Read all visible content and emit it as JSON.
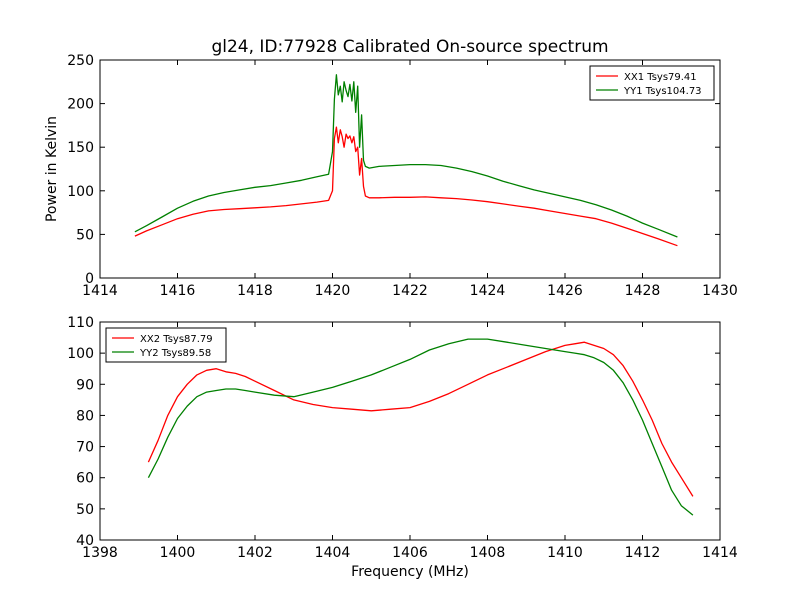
{
  "chart_data": [
    {
      "type": "line",
      "title": "gl24, ID:77928 Calibrated On-source spectrum",
      "xlabel": "",
      "ylabel": "Power in Kelvin",
      "xlim": [
        1414,
        1430
      ],
      "ylim": [
        0,
        250
      ],
      "xticks": [
        1414,
        1416,
        1418,
        1420,
        1422,
        1424,
        1426,
        1428,
        1430
      ],
      "yticks": [
        0,
        50,
        100,
        150,
        200,
        250
      ],
      "legend": "top-right",
      "grid": false,
      "series": [
        {
          "name": "XX1 Tsys79.41",
          "color": "#ff0000",
          "x": [
            1414.9,
            1415.2,
            1415.6,
            1416.0,
            1416.4,
            1416.8,
            1417.2,
            1417.6,
            1418.0,
            1418.4,
            1418.8,
            1419.2,
            1419.6,
            1419.9,
            1420.0,
            1420.05,
            1420.1,
            1420.15,
            1420.2,
            1420.25,
            1420.3,
            1420.35,
            1420.4,
            1420.45,
            1420.5,
            1420.55,
            1420.6,
            1420.65,
            1420.7,
            1420.75,
            1420.8,
            1420.85,
            1420.95,
            1421.2,
            1421.6,
            1422.0,
            1422.4,
            1422.8,
            1423.2,
            1423.6,
            1424.0,
            1424.4,
            1424.8,
            1425.2,
            1425.6,
            1426.0,
            1426.4,
            1426.8,
            1427.2,
            1427.6,
            1428.0,
            1428.4,
            1428.9
          ],
          "y": [
            48,
            54,
            61,
            68,
            73,
            77,
            78.5,
            79.5,
            80.5,
            81.5,
            83,
            85,
            87,
            89,
            100,
            160,
            173,
            155,
            170,
            162,
            150,
            165,
            160,
            163,
            155,
            162,
            145,
            150,
            118,
            137,
            105,
            94,
            92,
            92,
            92.5,
            92.5,
            93,
            92,
            91,
            89.5,
            87.5,
            85,
            82.5,
            80,
            77,
            74,
            71,
            68,
            63,
            57,
            51,
            45,
            37
          ]
        },
        {
          "name": "YY1 Tsys104.73",
          "color": "#008000",
          "x": [
            1414.9,
            1415.2,
            1415.6,
            1416.0,
            1416.4,
            1416.8,
            1417.2,
            1417.6,
            1418.0,
            1418.4,
            1418.8,
            1419.2,
            1419.6,
            1419.9,
            1420.0,
            1420.05,
            1420.1,
            1420.15,
            1420.2,
            1420.25,
            1420.3,
            1420.35,
            1420.4,
            1420.45,
            1420.5,
            1420.55,
            1420.6,
            1420.65,
            1420.7,
            1420.75,
            1420.8,
            1420.85,
            1420.95,
            1421.2,
            1421.6,
            1422.0,
            1422.4,
            1422.8,
            1423.2,
            1423.6,
            1424.0,
            1424.4,
            1424.8,
            1425.2,
            1425.6,
            1426.0,
            1426.4,
            1426.8,
            1427.2,
            1427.6,
            1428.0,
            1428.4,
            1428.9
          ],
          "y": [
            53,
            60,
            70,
            80,
            88,
            94,
            98,
            101,
            104,
            106,
            109,
            112,
            116,
            119,
            145,
            205,
            233,
            210,
            220,
            202,
            225,
            215,
            208,
            222,
            203,
            225,
            190,
            220,
            150,
            187,
            135,
            128,
            126,
            128,
            129,
            130,
            130,
            129,
            126,
            122,
            117,
            111,
            106,
            101,
            97,
            93,
            89,
            84,
            78,
            71,
            63,
            56,
            47
          ]
        }
      ]
    },
    {
      "type": "line",
      "title": "",
      "xlabel": "Frequency (MHz)",
      "ylabel": "",
      "xlim": [
        1398,
        1414
      ],
      "ylim": [
        40,
        110
      ],
      "xticks": [
        1398,
        1400,
        1402,
        1404,
        1406,
        1408,
        1410,
        1412,
        1414
      ],
      "yticks": [
        40,
        50,
        60,
        70,
        80,
        90,
        100,
        110
      ],
      "legend": "top-left",
      "grid": false,
      "series": [
        {
          "name": "XX2 Tsys87.79",
          "color": "#ff0000",
          "x": [
            1399.25,
            1399.5,
            1399.75,
            1400.0,
            1400.25,
            1400.5,
            1400.75,
            1401.0,
            1401.25,
            1401.5,
            1401.75,
            1402.0,
            1402.5,
            1403.0,
            1403.5,
            1404.0,
            1404.5,
            1405.0,
            1405.5,
            1406.0,
            1406.5,
            1407.0,
            1407.5,
            1408.0,
            1408.5,
            1409.0,
            1409.5,
            1410.0,
            1410.25,
            1410.5,
            1410.75,
            1411.0,
            1411.25,
            1411.5,
            1411.75,
            1412.0,
            1412.25,
            1412.5,
            1412.75,
            1413.0,
            1413.3
          ],
          "y": [
            65,
            72,
            80,
            86,
            90,
            93,
            94.5,
            95,
            94,
            93.5,
            92.5,
            91,
            88,
            85,
            83.5,
            82.5,
            82,
            81.5,
            82,
            82.5,
            84.5,
            87,
            90,
            93,
            95.5,
            98,
            100.5,
            102.5,
            103,
            103.5,
            102.5,
            101.5,
            99.5,
            96,
            91,
            85,
            78.5,
            71,
            65,
            60,
            54
          ]
        },
        {
          "name": "YY2 Tsys89.58",
          "color": "#008000",
          "x": [
            1399.25,
            1399.5,
            1399.75,
            1400.0,
            1400.25,
            1400.5,
            1400.75,
            1401.0,
            1401.25,
            1401.5,
            1401.75,
            1402.0,
            1402.5,
            1403.0,
            1403.5,
            1404.0,
            1404.5,
            1405.0,
            1405.5,
            1406.0,
            1406.5,
            1407.0,
            1407.5,
            1408.0,
            1408.5,
            1409.0,
            1409.5,
            1410.0,
            1410.25,
            1410.5,
            1410.75,
            1411.0,
            1411.25,
            1411.5,
            1411.75,
            1412.0,
            1412.25,
            1412.5,
            1412.75,
            1413.0,
            1413.3
          ],
          "y": [
            60,
            66,
            73,
            79,
            83,
            86,
            87.5,
            88,
            88.5,
            88.5,
            88,
            87.5,
            86.5,
            86,
            87.5,
            89,
            91,
            93,
            95.5,
            98,
            101,
            103,
            104.5,
            104.5,
            103.5,
            102.5,
            101.5,
            100.5,
            100,
            99.5,
            98.5,
            97,
            94.5,
            90.5,
            85,
            78.5,
            71,
            63.5,
            56,
            51,
            48
          ]
        }
      ]
    }
  ]
}
